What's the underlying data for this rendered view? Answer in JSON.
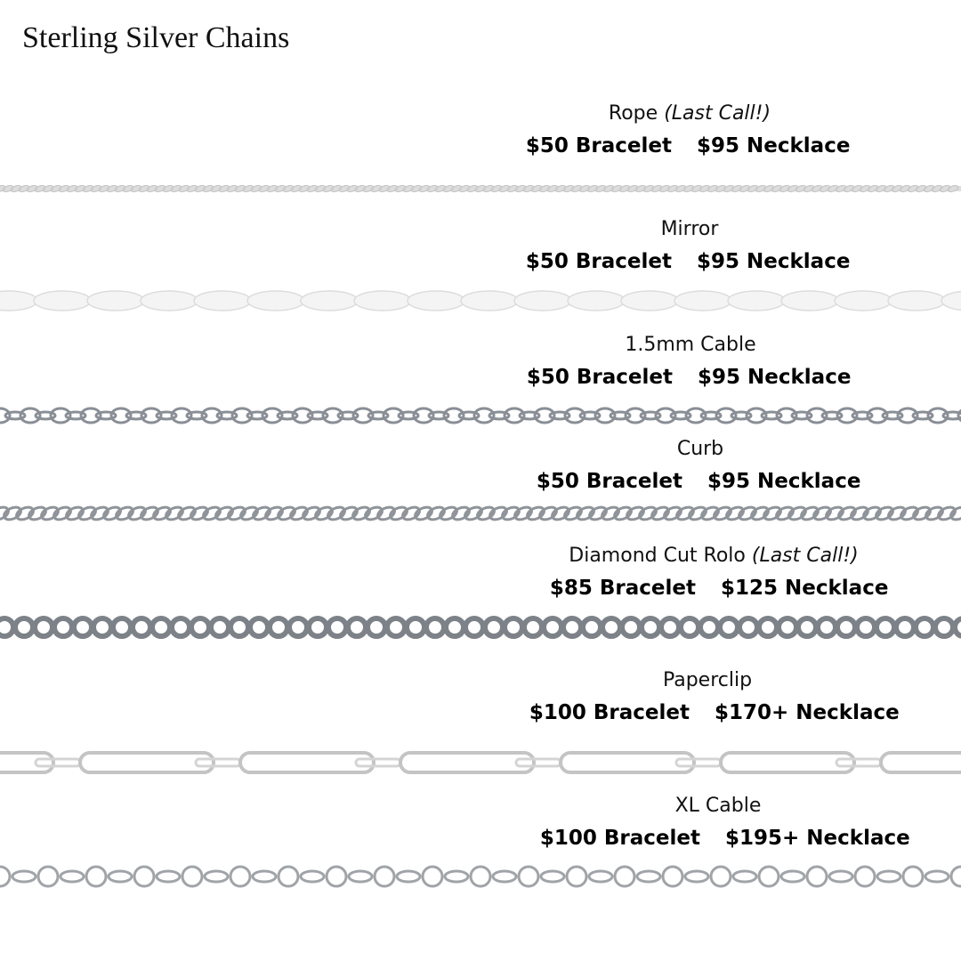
{
  "header": {
    "title": "Sterling Silver Chains"
  },
  "items": [
    {
      "name": "Rope",
      "note": "(Last Call!)",
      "bracelet": "$50 Bracelet",
      "necklace": "$95 Necklace"
    },
    {
      "name": "Mirror",
      "bracelet": "$50 Bracelet",
      "necklace": "$95 Necklace"
    },
    {
      "name": "1.5mm Cable",
      "bracelet": "$50 Bracelet",
      "necklace": "$95 Necklace"
    },
    {
      "name": "Curb",
      "bracelet": "$50 Bracelet",
      "necklace": "$95 Necklace"
    },
    {
      "name": "Diamond Cut Rolo",
      "note": "(Last Call!)",
      "bracelet": "$85 Bracelet",
      "necklace": "$125 Necklace"
    },
    {
      "name": "Paperclip",
      "bracelet": "$100 Bracelet",
      "necklace": "$170+ Necklace"
    },
    {
      "name": "XL Cable",
      "bracelet": "$100 Bracelet",
      "necklace": "$195+ Necklace"
    }
  ]
}
